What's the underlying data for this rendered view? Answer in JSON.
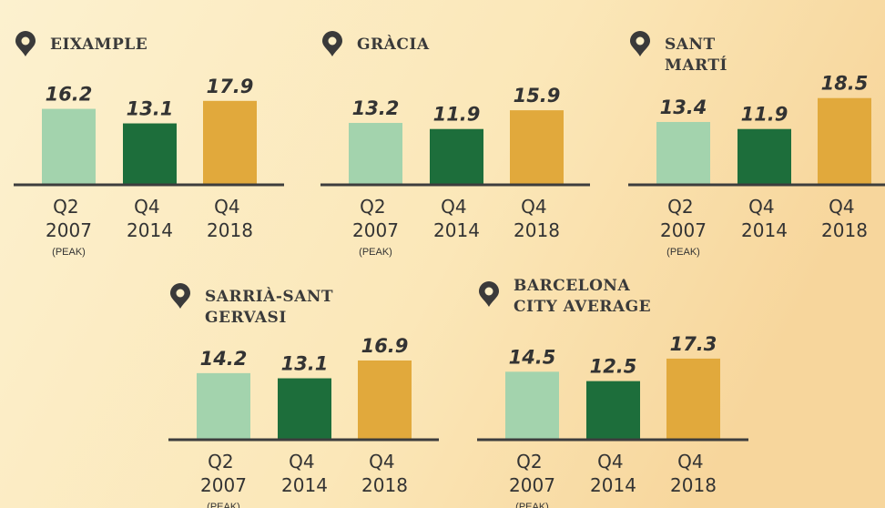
{
  "chart_data": [
    {
      "type": "bar",
      "title": "EIXAMPLE",
      "categories": [
        "Q2 2007",
        "Q4 2014",
        "Q4 2018"
      ],
      "values": [
        16.2,
        13.1,
        17.9
      ],
      "colors": [
        "#a3d3ad",
        "#1d6e3b",
        "#e1a93c"
      ],
      "annotation": "(PEAK)"
    },
    {
      "type": "bar",
      "title": "GRÀCIA",
      "categories": [
        "Q2 2007",
        "Q4 2014",
        "Q4 2018"
      ],
      "values": [
        13.2,
        11.9,
        15.9
      ],
      "colors": [
        "#a3d3ad",
        "#1d6e3b",
        "#e1a93c"
      ],
      "annotation": "(PEAK)"
    },
    {
      "type": "bar",
      "title": "SANT MARTÍ",
      "categories": [
        "Q2 2007",
        "Q4 2014",
        "Q4 2018"
      ],
      "values": [
        13.4,
        11.9,
        18.5
      ],
      "colors": [
        "#a3d3ad",
        "#1d6e3b",
        "#e1a93c"
      ],
      "annotation": "(PEAK)"
    },
    {
      "type": "bar",
      "title": "SARRIÀ-SANT GERVASI",
      "categories": [
        "Q2 2007",
        "Q4 2014",
        "Q4 2018"
      ],
      "values": [
        14.2,
        13.1,
        16.9
      ],
      "colors": [
        "#a3d3ad",
        "#1d6e3b",
        "#e1a93c"
      ],
      "annotation": "(PEAK)"
    },
    {
      "type": "bar",
      "title": "BARCELONA CITY AVERAGE",
      "categories": [
        "Q2 2007",
        "Q4 2014",
        "Q4 2018"
      ],
      "values": [
        14.5,
        12.5,
        17.3
      ],
      "colors": [
        "#a3d3ad",
        "#1d6e3b",
        "#e1a93c"
      ],
      "annotation": "(PEAK)"
    }
  ]
}
